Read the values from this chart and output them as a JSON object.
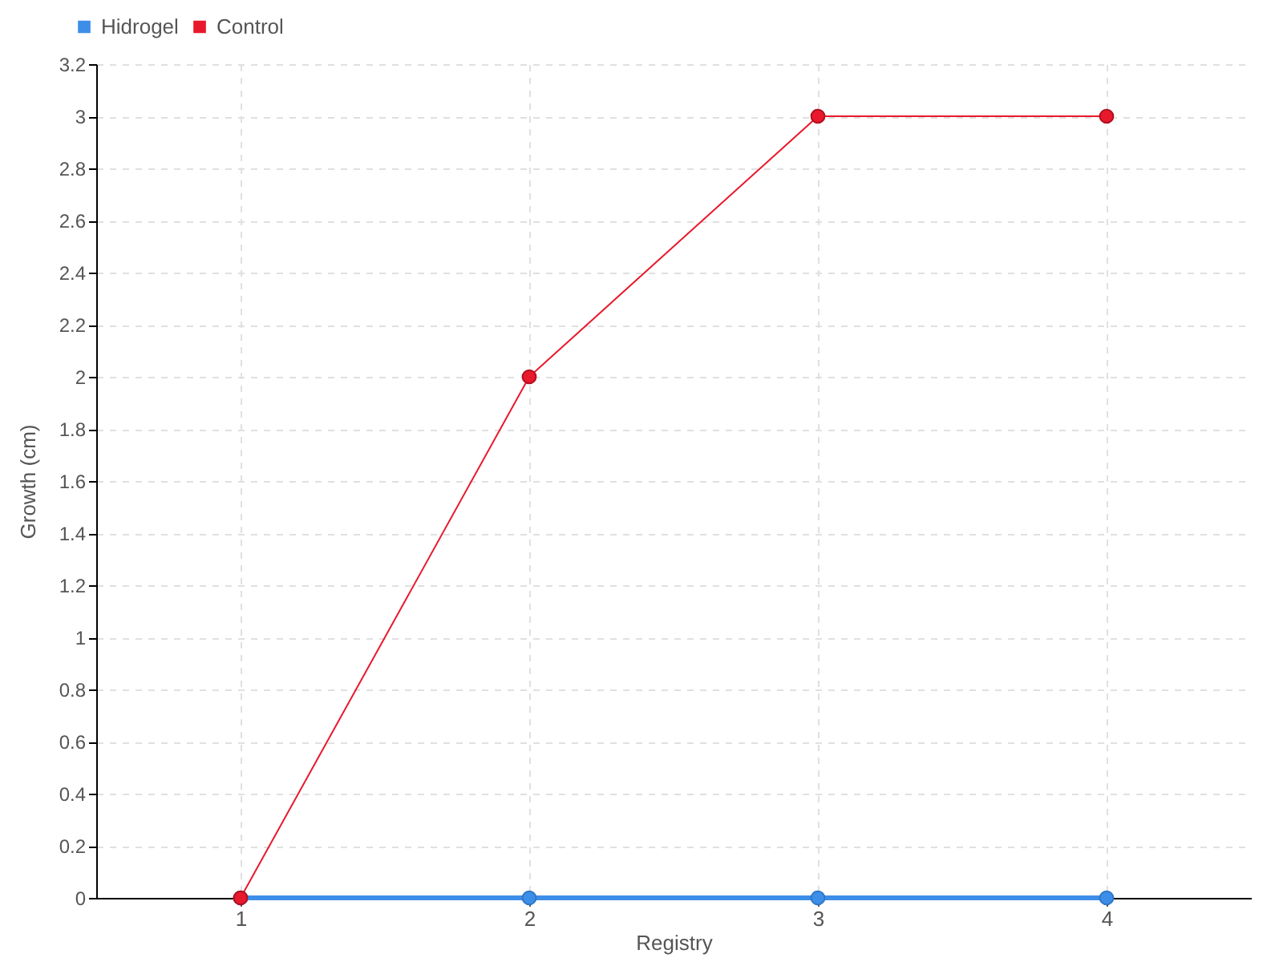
{
  "chart_data": {
    "type": "line",
    "xlabel": "Registry",
    "ylabel": "Growth (cm)",
    "categories": [
      "1",
      "2",
      "3",
      "4"
    ],
    "series": [
      {
        "name": "Hidrogel",
        "color": "#3d8ee8",
        "values": [
          0,
          0,
          0,
          0
        ]
      },
      {
        "name": "Control",
        "color": "#e8192c",
        "values": [
          0,
          2,
          3,
          3
        ]
      }
    ],
    "ylim": [
      0,
      3.2
    ],
    "yticks": [
      0,
      0.2,
      0.4,
      0.6,
      0.8,
      1,
      1.2,
      1.4,
      1.6,
      1.8,
      2,
      2.2,
      2.4,
      2.6,
      2.8,
      3,
      3.2
    ],
    "grid": true,
    "legend": "top left",
    "marker": "circle",
    "line_style": "solid"
  }
}
